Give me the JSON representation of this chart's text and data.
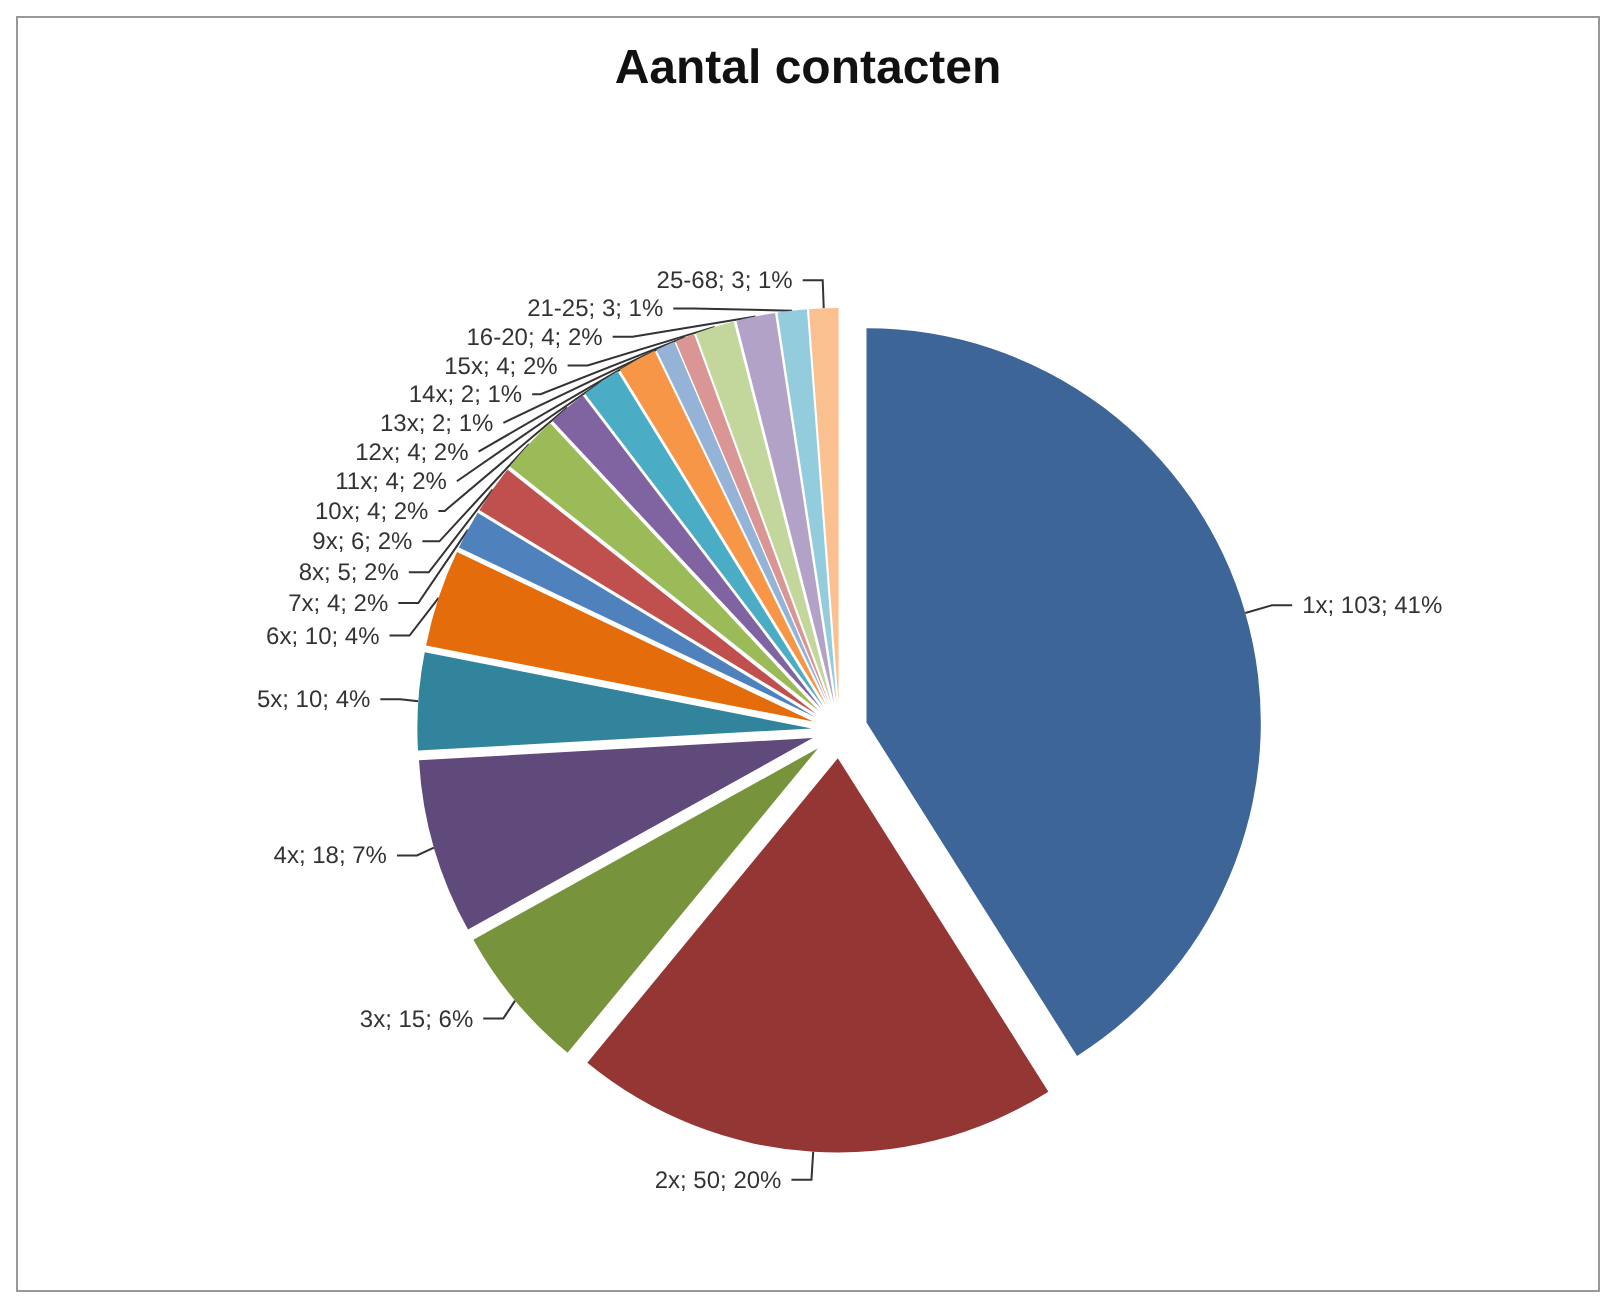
{
  "chart_data": {
    "type": "pie",
    "title": "Aantal contacten",
    "categories": [
      "1x",
      "2x",
      "3x",
      "4x",
      "5x",
      "6x",
      "7x",
      "8x",
      "9x",
      "10x",
      "11x",
      "12x",
      "13x",
      "14x",
      "15x",
      "16-20",
      "21-25",
      "25-68"
    ],
    "values": [
      103,
      50,
      15,
      18,
      10,
      10,
      4,
      5,
      6,
      4,
      4,
      4,
      2,
      2,
      4,
      4,
      3,
      3
    ],
    "value_labels": [
      "103; 41%",
      "50; 20%",
      "15; 6%",
      "18; 7%",
      "10; 4%",
      "10; 4%",
      "4; 2%",
      "5; 2%",
      "6; 2%",
      "4; 2%",
      "4; 2%",
      "4; 2%",
      "2; 1%",
      "2; 1%",
      "4; 2%",
      "4; 2%",
      "3; 1%",
      "3; 1%"
    ],
    "colors": [
      "#3d6597",
      "#943634",
      "#77933c",
      "#604a7b",
      "#31849b",
      "#e46c0a",
      "#4f81bd",
      "#c0504d",
      "#9bbb59",
      "#8064a2",
      "#4bacc6",
      "#f79646",
      "#95b3d7",
      "#d99694",
      "#c3d69b",
      "#b3a2c7",
      "#93cddd",
      "#fac090"
    ],
    "legend": false
  }
}
